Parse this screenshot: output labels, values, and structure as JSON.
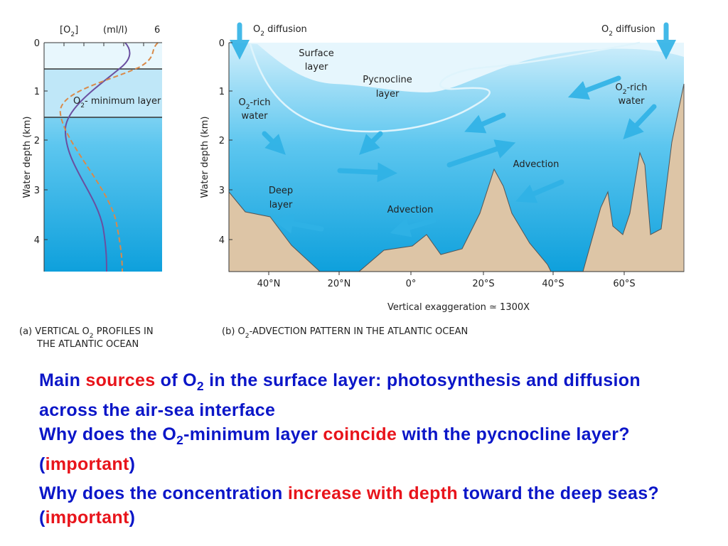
{
  "panel_a": {
    "top_labels": [
      [
        [
          "[O",
          {
            "sub": "2"
          },
          "]"
        ]
      ],
      [
        [
          "(ml/l)"
        ]
      ],
      [
        [
          "6"
        ]
      ]
    ],
    "depth_ticks": [
      "0",
      "1",
      "2",
      "3",
      "4"
    ],
    "y_axis_label": "Water depth (km)",
    "layer_label": [
      [
        "O",
        {
          "sub": "2"
        },
        "- minimum layer"
      ]
    ],
    "caption": [
      [
        "(a)  VERTICAL O",
        {
          "sub": "2"
        },
        " PROFILES IN"
      ],
      [
        "THE ATLANTIC OCEAN"
      ]
    ]
  },
  "panel_b": {
    "diffusion_left": [
      [
        "O",
        {
          "sub": "2"
        },
        " diffusion"
      ]
    ],
    "diffusion_right": [
      [
        "O",
        {
          "sub": "2"
        },
        " diffusion"
      ]
    ],
    "surface_layer": [
      [
        "Surface"
      ],
      [
        "layer"
      ]
    ],
    "pycnocline_layer": [
      [
        "Pycnocline"
      ],
      [
        "layer"
      ]
    ],
    "rich_water_left": [
      [
        "O",
        {
          "sub": "2"
        },
        "-rich"
      ],
      [
        "water"
      ]
    ],
    "rich_water_right": [
      [
        "O",
        {
          "sub": "2"
        },
        "-rich"
      ],
      [
        "water"
      ]
    ],
    "deep_layer": [
      [
        "Deep"
      ],
      [
        "layer"
      ]
    ],
    "advection_low": [
      [
        "Advection"
      ]
    ],
    "advection_high": [
      [
        "Advection"
      ]
    ],
    "depth_ticks": [
      "0",
      "1",
      "2",
      "3",
      "4"
    ],
    "y_axis_label": "Water depth (km)",
    "latitude_ticks": [
      "40°N",
      "20°N",
      "0°",
      "20°S",
      "40°S",
      "60°S"
    ],
    "exaggeration": [
      [
        "Vertical exaggeration ≃ 1300X"
      ]
    ],
    "caption": [
      [
        "(b)  O",
        {
          "sub": "2"
        },
        "-ADVECTION PATTERN IN THE ATLANTIC OCEAN"
      ]
    ]
  },
  "bullets": [
    [
      "Main ",
      {
        "em": "sources"
      },
      " of O",
      {
        "sub": "2"
      },
      " in the surface layer: photosynthesis and diffusion across the air-sea interface"
    ],
    [
      "Why does the O",
      {
        "sub": "2"
      },
      "-minimum layer ",
      {
        "em": "coincide"
      },
      " with the pycnocline layer? (",
      {
        "em": "important"
      },
      ")"
    ],
    [
      "Why does the concentration ",
      {
        "em": "increase with depth"
      },
      " toward the deep seas? (",
      {
        "em": "important"
      },
      ")"
    ]
  ]
}
